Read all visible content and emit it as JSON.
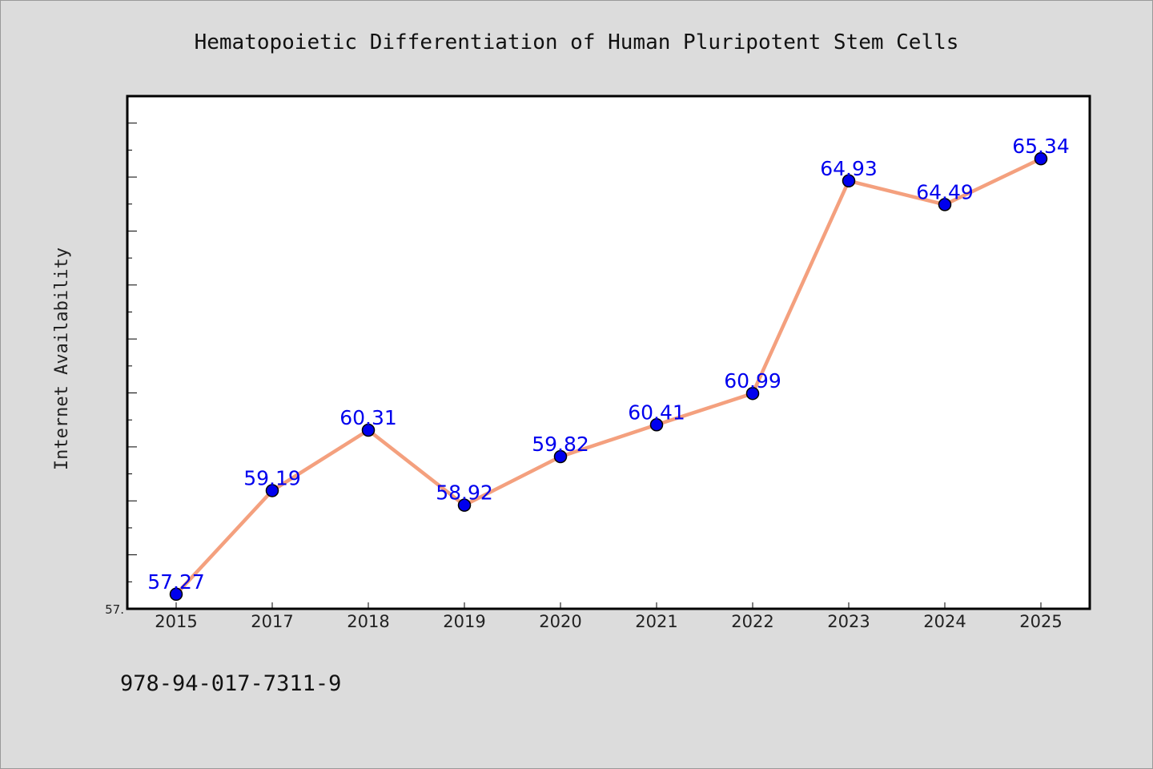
{
  "chart_data": {
    "type": "line",
    "title": "Hematopoietic Differentiation of Human Pluripotent Stem Cells",
    "xlabel": "",
    "ylabel": "Internet Availability",
    "categories": [
      "2015",
      "2017",
      "2018",
      "2019",
      "2020",
      "2021",
      "2022",
      "2023",
      "2024",
      "2025"
    ],
    "series": [
      {
        "values": [
          57.27,
          59.19,
          60.31,
          58.92,
          59.82,
          60.41,
          60.99,
          64.93,
          64.49,
          65.34
        ],
        "labels": [
          "57.27",
          "59.19",
          "60.31",
          "58.92",
          "59.82",
          "60.41",
          "60.99",
          "64.93",
          "64.49",
          "65.34"
        ]
      }
    ],
    "ylim": [
      57.0,
      66.5
    ],
    "yticks": [
      {
        "value": 57.0,
        "label": "57."
      }
    ],
    "line_color": "#f4a07e",
    "marker_color": "#0000ee",
    "label_color": "#0000ee",
    "grid": false,
    "legend": "none"
  },
  "footer": {
    "code": "978-94-017-7311-9"
  }
}
